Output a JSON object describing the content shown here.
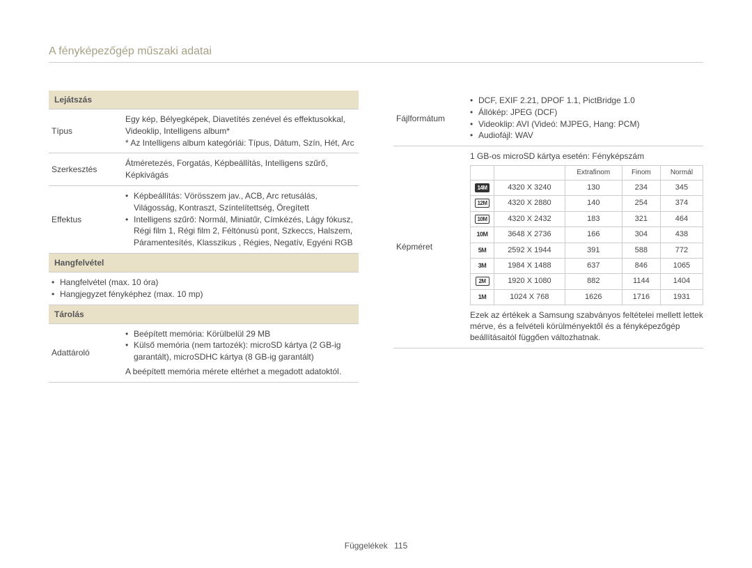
{
  "page_title": "A fényképezőgép műszaki adatai",
  "footer": {
    "label": "Függelékek",
    "page": "115"
  },
  "left": {
    "sections": [
      {
        "header": "Lejátszás",
        "rows": [
          {
            "label": "Típus",
            "html": "Egy kép, Bélyegképek, Diavetítés zenével és effektusokkal, Videoklip, Intelligens album*<br>* Az Intelligens album kategóriái: Típus, Dátum, Szín, Hét, Arc"
          },
          {
            "label": "Szerkesztés",
            "html": "Átméretezés, Forgatás, Képbeállítás, Intelligens szűrő, Képkivágás"
          },
          {
            "label": "Effektus",
            "bullets": [
              "Képbeállítás: Vörösszem jav., ACB, Arc retusálás, Világosság, Kontraszt, Színtelítettség, Öregített",
              "Intelligens szűrő: Normál, Miniatűr, Címkézés, Lágy fókusz, Régi film 1, Régi film 2, Féltónusú pont, Szkeccs, Halszem, Páramentesítés, Klasszikus , Régies, Negatív, Egyéni RGB"
            ]
          }
        ]
      },
      {
        "header": "Hangfelvétel",
        "plain_bullets": [
          "Hangfelvétel (max. 10 óra)",
          "Hangjegyzet fényképhez (max. 10 mp)"
        ]
      },
      {
        "header": "Tárolás",
        "rows": [
          {
            "label": "Adattároló",
            "bullets": [
              "Beépített memória: Körülbelül 29 MB",
              "Külső memória (nem tartozék): microSD kártya (2 GB-ig garantált), microSDHC kártya (8 GB-ig garantált)"
            ],
            "note": "A beépített memória mérete eltérhet a megadott adatoktól."
          }
        ]
      }
    ]
  },
  "right": {
    "rows": [
      {
        "label": "Fájlformátum",
        "bullets": [
          "DCF, EXIF 2.21, DPOF 1.1, PictBridge 1.0",
          "Állókép: JPEG (DCF)",
          "Videoklip: AVI (Videó: MJPEG, Hang: PCM)",
          "Audiofájl: WAV"
        ]
      },
      {
        "label": "Képméret",
        "intro": "1 GB-os microSD kártya esetén: Fényképszám",
        "size_table": {
          "headers": [
            "",
            "",
            "Extrafinom",
            "Finom",
            "Normál"
          ],
          "rows": [
            {
              "icon": "14M",
              "style": "solid",
              "res": "4320 X 3240",
              "e": "130",
              "f": "234",
              "n": "345"
            },
            {
              "icon": "12M",
              "style": "outline",
              "res": "4320 X 2880",
              "e": "140",
              "f": "254",
              "n": "374"
            },
            {
              "icon": "10M",
              "style": "outline",
              "res": "4320 X 2432",
              "e": "183",
              "f": "321",
              "n": "464"
            },
            {
              "icon": "10M",
              "style": "plain",
              "res": "3648 X 2736",
              "e": "166",
              "f": "304",
              "n": "438"
            },
            {
              "icon": "5M",
              "style": "plain",
              "res": "2592 X 1944",
              "e": "391",
              "f": "588",
              "n": "772"
            },
            {
              "icon": "3M",
              "style": "plain",
              "res": "1984 X 1488",
              "e": "637",
              "f": "846",
              "n": "1065"
            },
            {
              "icon": "2M",
              "style": "outline",
              "res": "1920 X 1080",
              "e": "882",
              "f": "1144",
              "n": "1404"
            },
            {
              "icon": "1M",
              "style": "plain",
              "res": "1024 X 768",
              "e": "1626",
              "f": "1716",
              "n": "1931"
            }
          ]
        },
        "after_note": "Ezek az értékek a Samsung szabványos feltételei mellett lettek mérve, és a felvételi körülményektől és a fényképezőgép beállításaitól függően változhatnak."
      }
    ]
  }
}
